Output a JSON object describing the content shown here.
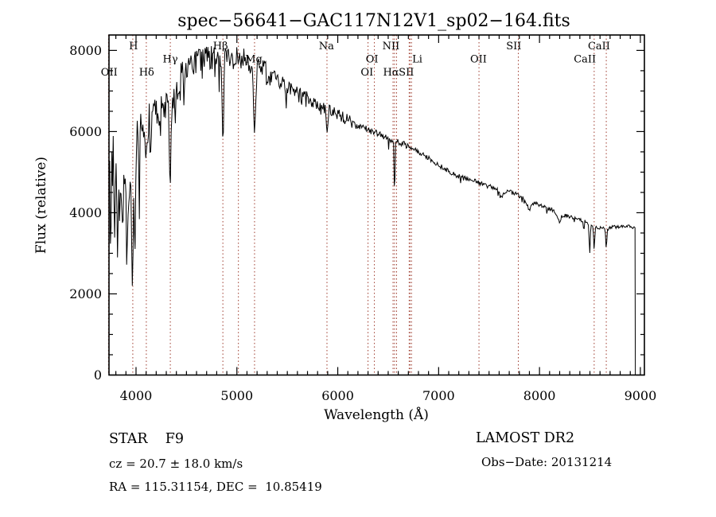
{
  "title": "spec−56641−GAC117N12V1_sp02−164.fits",
  "plot": {
    "x_axis": {
      "label": "Wavelength (Å)",
      "major_ticks": [
        4000,
        5000,
        6000,
        7000,
        8000,
        9000
      ],
      "minor_step": 100,
      "range": [
        3732,
        9040
      ]
    },
    "y_axis": {
      "label": "Flux (relative)",
      "major_ticks": [
        0,
        2000,
        4000,
        6000,
        8000
      ],
      "minor_step": 500,
      "range": [
        0,
        8380
      ]
    }
  },
  "annotations": {
    "class_line": "STAR    F9",
    "cz_line": "cz = 20.7 ± 18.0 km/s",
    "radec_line": "RA = 115.31154, DEC =  10.85419",
    "survey": "LAMOST DR2",
    "obs_date": "Obs−Date: 20131214"
  },
  "colors": {
    "background": "#ffffff",
    "spectrum": "#000000",
    "frame": "#000000",
    "marker_line": "#9e3b2d"
  },
  "line_markers": [
    {
      "label": "OII",
      "row": 3,
      "line": 3727,
      "label_at": 3734
    },
    {
      "label": "H",
      "row": 1,
      "line": 3968,
      "label_at": 3975
    },
    {
      "label": "Hδ",
      "row": 3,
      "line": 4102,
      "label_at": 4105
    },
    {
      "label": "Hγ",
      "row": 2,
      "line": 4340,
      "label_at": 4340
    },
    {
      "label": "Hβ",
      "row": 1,
      "line": 4861,
      "label_at": 4838
    },
    {
      "label": "",
      "row": 0,
      "line": 5015,
      "label_at": 5015
    },
    {
      "label": "Mg",
      "row": 2,
      "line": 5175,
      "label_at": 5168
    },
    {
      "label": "Na",
      "row": 1,
      "line": 5893,
      "label_at": 5888
    },
    {
      "label": "OI",
      "row": 3,
      "line": 6300,
      "label_at": 6290
    },
    {
      "label": "OI",
      "row": 2,
      "line": 6363,
      "label_at": 6340
    },
    {
      "label": "NII",
      "row": 1,
      "line": 6548,
      "label_at": 6528
    },
    {
      "label": "Hα",
      "row": 3,
      "line": 6563,
      "label_at": 6528
    },
    {
      "label": "",
      "row": 0,
      "line": 6583,
      "label_at": 0
    },
    {
      "label": "Li",
      "row": 2,
      "line": 6708,
      "label_at": 6788
    },
    {
      "label": "SII",
      "row": 3,
      "line": 6716,
      "label_at": 6680
    },
    {
      "label": "",
      "row": 0,
      "line": 6731,
      "label_at": 0
    },
    {
      "label": "OII",
      "row": 2,
      "line": 7400,
      "label_at": 7395
    },
    {
      "label": "SII",
      "row": 1,
      "line": 7790,
      "label_at": 7745
    },
    {
      "label": "CaII",
      "row": 2,
      "line": 8542,
      "label_at": 8450
    },
    {
      "label": "CaII",
      "row": 1,
      "line": 8662,
      "label_at": 8590
    }
  ],
  "chart_data": {
    "type": "line",
    "title": "spec−56641−GAC117N12V1_sp02−164.fits",
    "xlabel": "Wavelength (Å)",
    "ylabel": "Flux (relative)",
    "xlim": [
      3732,
      9040
    ],
    "ylim": [
      0,
      8380
    ],
    "x_ticks": [
      4000,
      5000,
      6000,
      7000,
      8000,
      9000
    ],
    "y_ticks": [
      0,
      2000,
      4000,
      6000,
      8000
    ],
    "grid": "none",
    "legend": "none",
    "sample_start": 3732,
    "sample_end": 8950,
    "sample_step": 7,
    "seed": 12345,
    "continuum_anchors": [
      [
        3732,
        4700
      ],
      [
        3737,
        5950
      ],
      [
        3742,
        4300
      ],
      [
        3748,
        2700
      ],
      [
        3754,
        4100
      ],
      [
        3760,
        5300
      ],
      [
        3766,
        4400
      ],
      [
        3772,
        6050
      ],
      [
        3778,
        5100
      ],
      [
        3784,
        3600
      ],
      [
        3790,
        3300
      ],
      [
        3797,
        4800
      ],
      [
        3804,
        5300
      ],
      [
        3811,
        3700
      ],
      [
        3818,
        3050
      ],
      [
        3825,
        4300
      ],
      [
        3832,
        4900
      ],
      [
        3839,
        3600
      ],
      [
        3846,
        4600
      ],
      [
        3853,
        5200
      ],
      [
        3860,
        4100
      ],
      [
        3867,
        3500
      ],
      [
        3874,
        4200
      ],
      [
        3881,
        5000
      ],
      [
        3888,
        4400
      ],
      [
        3895,
        5150
      ],
      [
        3902,
        4200
      ],
      [
        3909,
        2950
      ],
      [
        3916,
        3500
      ],
      [
        3923,
        4700
      ],
      [
        3930,
        3900
      ],
      [
        3937,
        4500
      ],
      [
        3944,
        5100
      ],
      [
        3951,
        4200
      ],
      [
        3958,
        2900
      ],
      [
        3965,
        2200
      ],
      [
        3971,
        3300
      ],
      [
        3977,
        4500
      ],
      [
        3983,
        3500
      ],
      [
        3989,
        2500
      ],
      [
        3995,
        4000
      ],
      [
        4002,
        5500
      ],
      [
        4010,
        6050
      ],
      [
        4018,
        6200
      ],
      [
        4026,
        5100
      ],
      [
        4031,
        2600
      ],
      [
        4036,
        5600
      ],
      [
        4045,
        6150
      ],
      [
        4150,
        6400
      ],
      [
        4250,
        6550
      ],
      [
        4350,
        6700
      ],
      [
        4450,
        7400
      ],
      [
        4550,
        7650
      ],
      [
        4650,
        7750
      ],
      [
        4750,
        7820
      ],
      [
        4850,
        7850
      ],
      [
        4950,
        7800
      ],
      [
        5050,
        7780
      ],
      [
        5150,
        7700
      ],
      [
        5250,
        7520
      ],
      [
        5350,
        7320
      ],
      [
        5450,
        7150
      ],
      [
        5550,
        7000
      ],
      [
        5650,
        6850
      ],
      [
        5750,
        6720
      ],
      [
        5850,
        6600
      ],
      [
        5950,
        6500
      ],
      [
        6050,
        6350
      ],
      [
        6150,
        6220
      ],
      [
        6250,
        6100
      ],
      [
        6350,
        6000
      ],
      [
        6450,
        5900
      ],
      [
        6550,
        5800
      ],
      [
        6650,
        5700
      ],
      [
        6750,
        5580
      ],
      [
        6850,
        5430
      ],
      [
        6950,
        5250
      ],
      [
        7050,
        5100
      ],
      [
        7150,
        4950
      ],
      [
        7250,
        4850
      ],
      [
        7350,
        4780
      ],
      [
        7450,
        4700
      ],
      [
        7550,
        4600
      ],
      [
        7650,
        4550
      ],
      [
        7750,
        4480
      ],
      [
        7850,
        4350
      ],
      [
        7950,
        4250
      ],
      [
        8050,
        4150
      ],
      [
        8150,
        4050
      ],
      [
        8250,
        3950
      ],
      [
        8350,
        3880
      ],
      [
        8450,
        3800
      ],
      [
        8550,
        3650
      ],
      [
        8650,
        3620
      ],
      [
        8750,
        3650
      ],
      [
        8850,
        3680
      ],
      [
        8950,
        3620
      ]
    ],
    "absorption_lines": [
      [
        4102,
        1000,
        9
      ],
      [
        4340,
        1800,
        8
      ],
      [
        4861,
        2300,
        8
      ],
      [
        5175,
        1700,
        10
      ],
      [
        5893,
        650,
        8
      ],
      [
        6563,
        1400,
        5
      ],
      [
        7620,
        170,
        18
      ],
      [
        7900,
        200,
        22
      ],
      [
        8190,
        220,
        22
      ],
      [
        8440,
        330,
        4
      ],
      [
        8498,
        760,
        5
      ],
      [
        8542,
        560,
        5
      ],
      [
        8662,
        520,
        5
      ]
    ],
    "noise_sigma_segments": [
      [
        3732,
        4045,
        200
      ],
      [
        4045,
        4400,
        370
      ],
      [
        4400,
        4700,
        330
      ],
      [
        4700,
        5300,
        290
      ],
      [
        5300,
        5700,
        210
      ],
      [
        5700,
        6150,
        140
      ],
      [
        6150,
        6700,
        85
      ],
      [
        6700,
        7600,
        60
      ],
      [
        7600,
        8450,
        55
      ],
      [
        8450,
        8955,
        42
      ]
    ]
  }
}
